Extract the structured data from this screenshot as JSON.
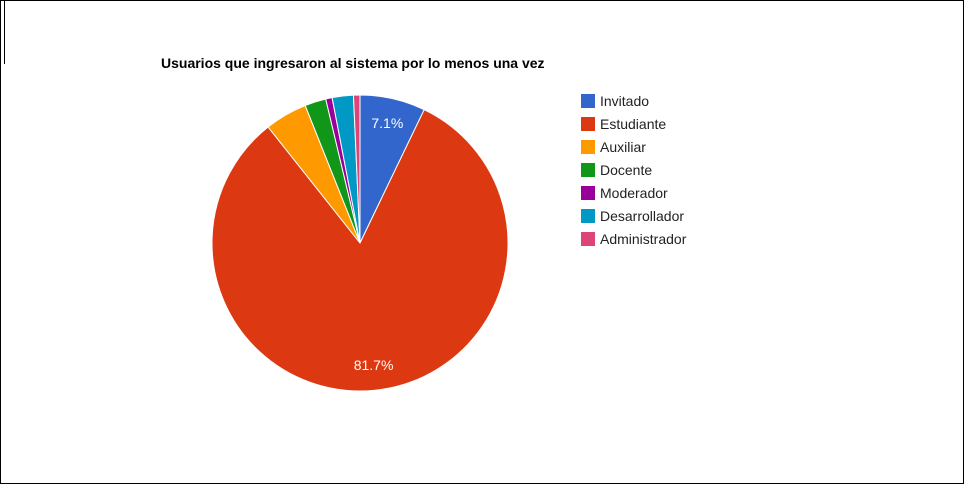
{
  "chart_data": {
    "type": "pie",
    "title": "Usuarios que ingresaron al sistema por lo menos una vez",
    "legend_position": "right",
    "slices": [
      {
        "name": "Invitado",
        "value": 7.1,
        "color": "#3366cc",
        "label": "7.1%"
      },
      {
        "name": "Estudiante",
        "value": 81.7,
        "color": "#dc3912",
        "label": "81.7%"
      },
      {
        "name": "Auxiliar",
        "value": 4.6,
        "color": "#ff9900",
        "label": ""
      },
      {
        "name": "Docente",
        "value": 2.3,
        "color": "#109618",
        "label": ""
      },
      {
        "name": "Moderador",
        "value": 0.7,
        "color": "#990099",
        "label": ""
      },
      {
        "name": "Desarrollador",
        "value": 2.3,
        "color": "#0099c6",
        "label": ""
      },
      {
        "name": "Administrador",
        "value": 0.7,
        "color": "#dd4477",
        "label": ""
      }
    ]
  }
}
